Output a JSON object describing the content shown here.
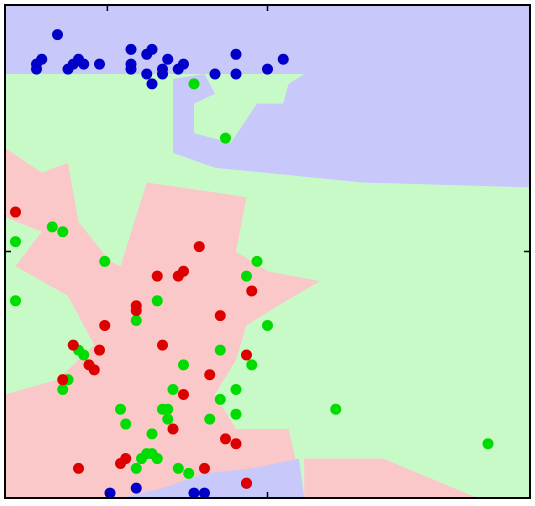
{
  "chart_data": {
    "type": "scatter",
    "title": "",
    "xlabel": "",
    "ylabel": "",
    "xlim": [
      0,
      1
    ],
    "ylim": [
      0,
      1
    ],
    "grid": false,
    "legend": "none",
    "x_ticks": [
      0.195,
      0.5
    ],
    "y_ticks": [
      0.5
    ],
    "colors": {
      "blue_region": "#c8c8fa",
      "green_region": "#c8fac8",
      "red_region": "#fac8c8",
      "blue_point": "#0000c8",
      "green_point": "#00dc00",
      "red_point": "#dc0000",
      "frame": "#000000"
    },
    "regions": [
      {
        "class": "green",
        "polygon": [
          [
            0,
            0
          ],
          [
            1,
            0
          ],
          [
            1,
            0.63
          ],
          [
            0.68,
            0.64
          ],
          [
            0.4,
            0.67
          ],
          [
            0.32,
            0.7
          ],
          [
            0.32,
            0.85
          ],
          [
            0.38,
            0.86
          ],
          [
            0.4,
            0.82
          ],
          [
            0.36,
            0.8
          ],
          [
            0.36,
            0.74
          ],
          [
            0.43,
            0.72
          ],
          [
            0.48,
            0.8
          ],
          [
            0.53,
            0.8
          ],
          [
            0.54,
            0.84
          ],
          [
            0.57,
            0.86
          ],
          [
            0.0,
            0.86
          ]
        ]
      },
      {
        "class": "blue",
        "polygon": [
          [
            0,
            1
          ],
          [
            1,
            1
          ],
          [
            1,
            0.63
          ],
          [
            0.68,
            0.64
          ],
          [
            0.4,
            0.67
          ],
          [
            0.32,
            0.7
          ],
          [
            0.32,
            0.85
          ],
          [
            0.38,
            0.86
          ],
          [
            0.4,
            0.82
          ],
          [
            0.36,
            0.8
          ],
          [
            0.36,
            0.74
          ],
          [
            0.43,
            0.72
          ],
          [
            0.48,
            0.8
          ],
          [
            0.53,
            0.8
          ],
          [
            0.54,
            0.84
          ],
          [
            0.57,
            0.86
          ],
          [
            0,
            0.86
          ]
        ]
      },
      {
        "class": "red",
        "polygon": [
          [
            0,
            0.71
          ],
          [
            0.07,
            0.66
          ],
          [
            0.12,
            0.68
          ],
          [
            0.14,
            0.56
          ],
          [
            0.2,
            0.48
          ],
          [
            0.22,
            0.47
          ],
          [
            0.27,
            0.64
          ],
          [
            0.4,
            0.62
          ],
          [
            0.46,
            0.61
          ],
          [
            0.44,
            0.5
          ],
          [
            0.5,
            0.46
          ],
          [
            0.6,
            0.44
          ],
          [
            0.52,
            0.39
          ],
          [
            0.46,
            0.35
          ],
          [
            0.44,
            0.28
          ],
          [
            0.4,
            0.21
          ],
          [
            0.44,
            0.14
          ],
          [
            0.54,
            0.14
          ],
          [
            0.57,
            0.0
          ],
          [
            0,
            0
          ],
          [
            0,
            0.21
          ],
          [
            0.1,
            0.24
          ],
          [
            0.17,
            0.31
          ],
          [
            0.12,
            0.41
          ],
          [
            0.02,
            0.47
          ],
          [
            0.07,
            0.54
          ],
          [
            0,
            0.57
          ]
        ]
      },
      {
        "class": "red",
        "polygon": [
          [
            0.57,
            0.08
          ],
          [
            0.72,
            0.08
          ],
          [
            0.9,
            0.0
          ],
          [
            0.57,
            0.0
          ]
        ]
      },
      {
        "class": "blue",
        "polygon": [
          [
            0.22,
            0.0
          ],
          [
            0.57,
            0.0
          ],
          [
            0.56,
            0.08
          ],
          [
            0.47,
            0.06
          ],
          [
            0.38,
            0.05
          ],
          [
            0.3,
            0.02
          ]
        ]
      }
    ],
    "series": [
      {
        "class": "blue",
        "x": [
          0.1,
          0.06,
          0.07,
          0.06,
          0.14,
          0.13,
          0.12,
          0.15,
          0.18,
          0.24,
          0.24,
          0.24,
          0.27,
          0.28,
          0.27,
          0.28,
          0.3,
          0.3,
          0.31,
          0.33,
          0.34,
          0.4,
          0.44,
          0.44,
          0.5,
          0.53,
          0.2,
          0.25,
          0.36,
          0.46,
          0.38
        ],
        "y": [
          0.94,
          0.88,
          0.89,
          0.87,
          0.89,
          0.88,
          0.87,
          0.88,
          0.88,
          0.91,
          0.88,
          0.87,
          0.86,
          0.84,
          0.9,
          0.91,
          0.87,
          0.86,
          0.89,
          0.87,
          0.88,
          0.86,
          0.86,
          0.9,
          0.87,
          0.89,
          0.01,
          0.02,
          0.01,
          0.03,
          0.01
        ]
      },
      {
        "class": "green",
        "x": [
          0.36,
          0.42,
          0.02,
          0.09,
          0.11,
          0.19,
          0.02,
          0.29,
          0.46,
          0.48,
          0.5,
          0.25,
          0.14,
          0.15,
          0.41,
          0.34,
          0.32,
          0.11,
          0.22,
          0.31,
          0.47,
          0.44,
          0.41,
          0.3,
          0.23,
          0.28,
          0.27,
          0.31,
          0.29,
          0.35,
          0.25,
          0.26,
          0.28,
          0.33,
          0.63,
          0.92,
          0.44,
          0.39,
          0.12
        ],
        "y": [
          0.84,
          0.73,
          0.52,
          0.55,
          0.54,
          0.48,
          0.4,
          0.4,
          0.45,
          0.48,
          0.35,
          0.36,
          0.3,
          0.29,
          0.3,
          0.27,
          0.22,
          0.22,
          0.18,
          0.18,
          0.27,
          0.22,
          0.2,
          0.18,
          0.15,
          0.13,
          0.09,
          0.16,
          0.08,
          0.05,
          0.06,
          0.08,
          0.09,
          0.06,
          0.18,
          0.11,
          0.17,
          0.16,
          0.24
        ]
      },
      {
        "class": "red",
        "x": [
          0.02,
          0.37,
          0.29,
          0.33,
          0.34,
          0.25,
          0.25,
          0.41,
          0.47,
          0.19,
          0.13,
          0.18,
          0.16,
          0.3,
          0.11,
          0.17,
          0.39,
          0.34,
          0.46,
          0.32,
          0.42,
          0.44,
          0.22,
          0.23,
          0.14,
          0.38,
          0.46
        ],
        "y": [
          0.58,
          0.51,
          0.45,
          0.45,
          0.46,
          0.39,
          0.38,
          0.37,
          0.42,
          0.35,
          0.31,
          0.3,
          0.27,
          0.31,
          0.24,
          0.26,
          0.25,
          0.21,
          0.29,
          0.14,
          0.12,
          0.11,
          0.07,
          0.08,
          0.06,
          0.06,
          0.03
        ]
      }
    ]
  }
}
